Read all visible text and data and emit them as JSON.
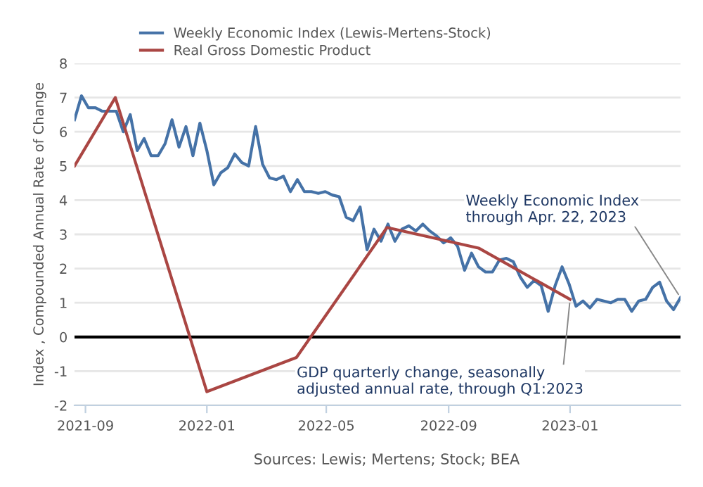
{
  "chart_data": {
    "type": "line",
    "ylabel": "Index , Compounded Annual Rate of Change",
    "series": [
      {
        "name": "Weekly Economic Index (Lewis-Mertens-Stock)",
        "color": "#4572a7",
        "x": [
          "2021-08-21",
          "2021-08-28",
          "2021-09-04",
          "2021-09-11",
          "2021-09-18",
          "2021-09-25",
          "2021-10-02",
          "2021-10-09",
          "2021-10-16",
          "2021-10-23",
          "2021-10-30",
          "2021-11-06",
          "2021-11-13",
          "2021-11-20",
          "2021-11-27",
          "2021-12-04",
          "2021-12-11",
          "2021-12-18",
          "2021-12-25",
          "2022-01-01",
          "2022-01-08",
          "2022-01-15",
          "2022-01-22",
          "2022-01-29",
          "2022-02-05",
          "2022-02-12",
          "2022-02-19",
          "2022-02-26",
          "2022-03-05",
          "2022-03-12",
          "2022-03-19",
          "2022-03-26",
          "2022-04-02",
          "2022-04-09",
          "2022-04-16",
          "2022-04-23",
          "2022-04-30",
          "2022-05-07",
          "2022-05-14",
          "2022-05-21",
          "2022-05-28",
          "2022-06-04",
          "2022-06-11",
          "2022-06-18",
          "2022-06-25",
          "2022-07-02",
          "2022-07-09",
          "2022-07-16",
          "2022-07-23",
          "2022-07-30",
          "2022-08-06",
          "2022-08-13",
          "2022-08-20",
          "2022-08-27",
          "2022-09-03",
          "2022-09-10",
          "2022-09-17",
          "2022-09-24",
          "2022-10-01",
          "2022-10-08",
          "2022-10-15",
          "2022-10-22",
          "2022-10-29",
          "2022-11-05",
          "2022-11-12",
          "2022-11-19",
          "2022-11-26",
          "2022-12-03",
          "2022-12-10",
          "2022-12-17",
          "2022-12-24",
          "2022-12-31",
          "2023-01-07",
          "2023-01-14",
          "2023-01-21",
          "2023-01-28",
          "2023-02-04",
          "2023-02-11",
          "2023-02-18",
          "2023-02-25",
          "2023-03-04",
          "2023-03-11",
          "2023-03-18",
          "2023-03-25",
          "2023-04-01",
          "2023-04-08",
          "2023-04-15",
          "2023-04-22"
        ],
        "values": [
          6.35,
          7.05,
          6.7,
          6.7,
          6.6,
          6.6,
          6.6,
          6.0,
          6.5,
          5.45,
          5.8,
          5.3,
          5.3,
          5.65,
          6.35,
          5.55,
          6.15,
          5.3,
          6.25,
          5.45,
          4.45,
          4.8,
          4.95,
          5.35,
          5.1,
          5.0,
          6.15,
          5.05,
          4.65,
          4.6,
          4.7,
          4.25,
          4.6,
          4.25,
          4.25,
          4.2,
          4.25,
          4.15,
          4.1,
          3.5,
          3.4,
          3.8,
          2.55,
          3.15,
          2.8,
          3.3,
          2.8,
          3.15,
          3.25,
          3.1,
          3.3,
          3.1,
          2.95,
          2.75,
          2.9,
          2.65,
          1.95,
          2.45,
          2.05,
          1.9,
          1.9,
          2.25,
          2.3,
          2.2,
          1.75,
          1.45,
          1.65,
          1.5,
          0.75,
          1.5,
          2.05,
          1.55,
          0.9,
          1.05,
          0.85,
          1.1,
          1.05,
          1.0,
          1.1,
          1.1,
          0.75,
          1.05,
          1.1,
          1.45,
          1.6,
          1.05,
          0.8,
          1.15
        ]
      },
      {
        "name": "Real Gross Domestic Product",
        "color": "#aa4643",
        "x": [
          "2021-08-21",
          "2021-10-01",
          "2022-01-01",
          "2022-04-01",
          "2022-07-01",
          "2022-10-01",
          "2023-01-01"
        ],
        "values": [
          5.0,
          7.0,
          -1.6,
          -0.6,
          3.2,
          2.6,
          1.1
        ]
      }
    ],
    "xlim": [
      "2021-08-21",
      "2023-04-22"
    ],
    "xticks": [
      {
        "value": "2021-09-01",
        "label": "2021-09"
      },
      {
        "value": "2022-01-01",
        "label": "2022-01"
      },
      {
        "value": "2022-05-01",
        "label": "2022-05"
      },
      {
        "value": "2022-09-01",
        "label": "2022-09"
      },
      {
        "value": "2023-01-01",
        "label": "2023-01"
      }
    ],
    "ylim": [
      -2,
      8
    ],
    "yticks": [
      -2,
      -1,
      0,
      1,
      2,
      3,
      4,
      5,
      6,
      7,
      8
    ],
    "grid": "y",
    "legend": "top left",
    "marker": "none",
    "line_style": "solid",
    "ref_lines": [
      {
        "axis": "y",
        "value": 0,
        "color": "#000000"
      }
    ],
    "annotations": [
      {
        "text": "Weekly Economic Index\nthrough Apr. 22, 2023",
        "x": "2023-04-22",
        "y": 1.15
      },
      {
        "text": "GDP quarterly change, seasonally\nadjusted annual rate, through Q1:2023",
        "x": "2023-01-01",
        "y": 1.1
      },
      "Sources: Lewis; Mertens; Stock; BEA"
    ]
  }
}
